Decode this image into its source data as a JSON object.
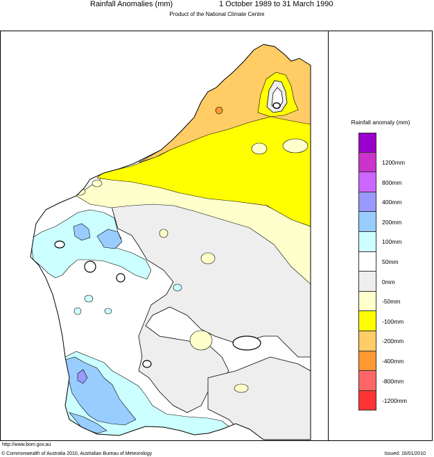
{
  "header": {
    "title": "Rainfall Anomalies (mm)",
    "period": "1 October 1989 to 31 March 1990",
    "subtitle": "Product of the National Climate Centre"
  },
  "legend": {
    "title": "Rainfall anomaly (mm)",
    "classes": [
      {
        "color": "#9900cc",
        "label": ""
      },
      {
        "color": "#cc33cc",
        "label": "1200mm"
      },
      {
        "color": "#cc66ff",
        "label": "800mm"
      },
      {
        "color": "#9999ff",
        "label": "400mm"
      },
      {
        "color": "#99ccff",
        "label": "200mm"
      },
      {
        "color": "#ccffff",
        "label": "100mm"
      },
      {
        "color": "#ffffff",
        "label": "50mm"
      },
      {
        "color": "#eeeeee",
        "label": "0mm"
      },
      {
        "color": "#ffffcc",
        "label": "-50mm"
      },
      {
        "color": "#ffff00",
        "label": "-100mm"
      },
      {
        "color": "#ffcc66",
        "label": "-200mm"
      },
      {
        "color": "#ff9933",
        "label": "-400mm"
      },
      {
        "color": "#ff6666",
        "label": "-800mm"
      },
      {
        "color": "#ff3333",
        "label": "-1200mm"
      }
    ]
  },
  "footer": {
    "url": "http://www.bom.gov.au",
    "copyright": "© Commonwealth of Australia 2010, Australian Bureau of Meteorology",
    "issued": "Issued: 16/01/2010"
  }
}
